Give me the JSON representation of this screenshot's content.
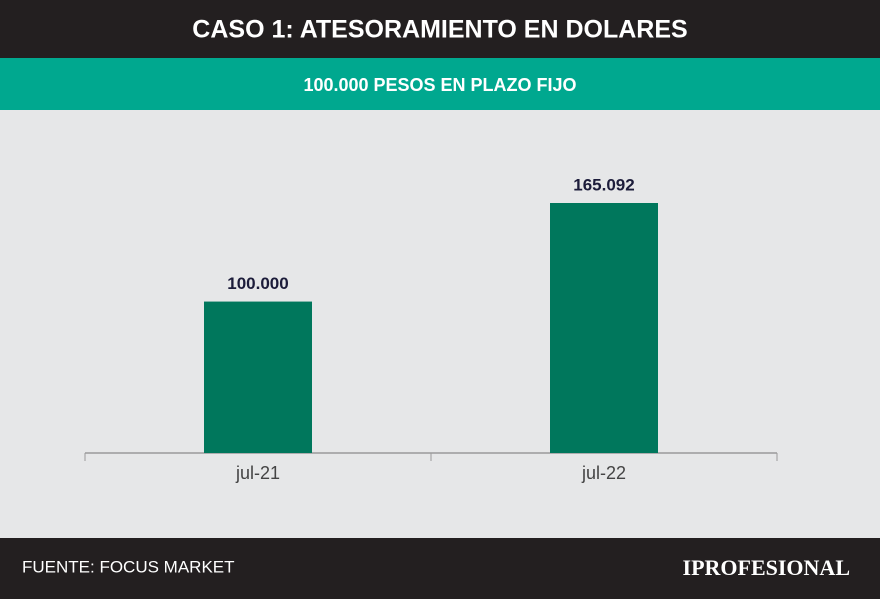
{
  "chart_data": {
    "type": "bar",
    "title": "CASO 1: ATESORAMIENTO EN DOLARES",
    "subtitle": "100.000 PESOS EN PLAZO FIJO",
    "categories": [
      "jul-21",
      "jul-22"
    ],
    "values": [
      100000,
      165092
    ],
    "value_labels": [
      "100.000",
      "165.092"
    ],
    "color": "#00775c",
    "source": "FUENTE: FOCUS MARKET",
    "brand": "IPROFESIONAL"
  }
}
